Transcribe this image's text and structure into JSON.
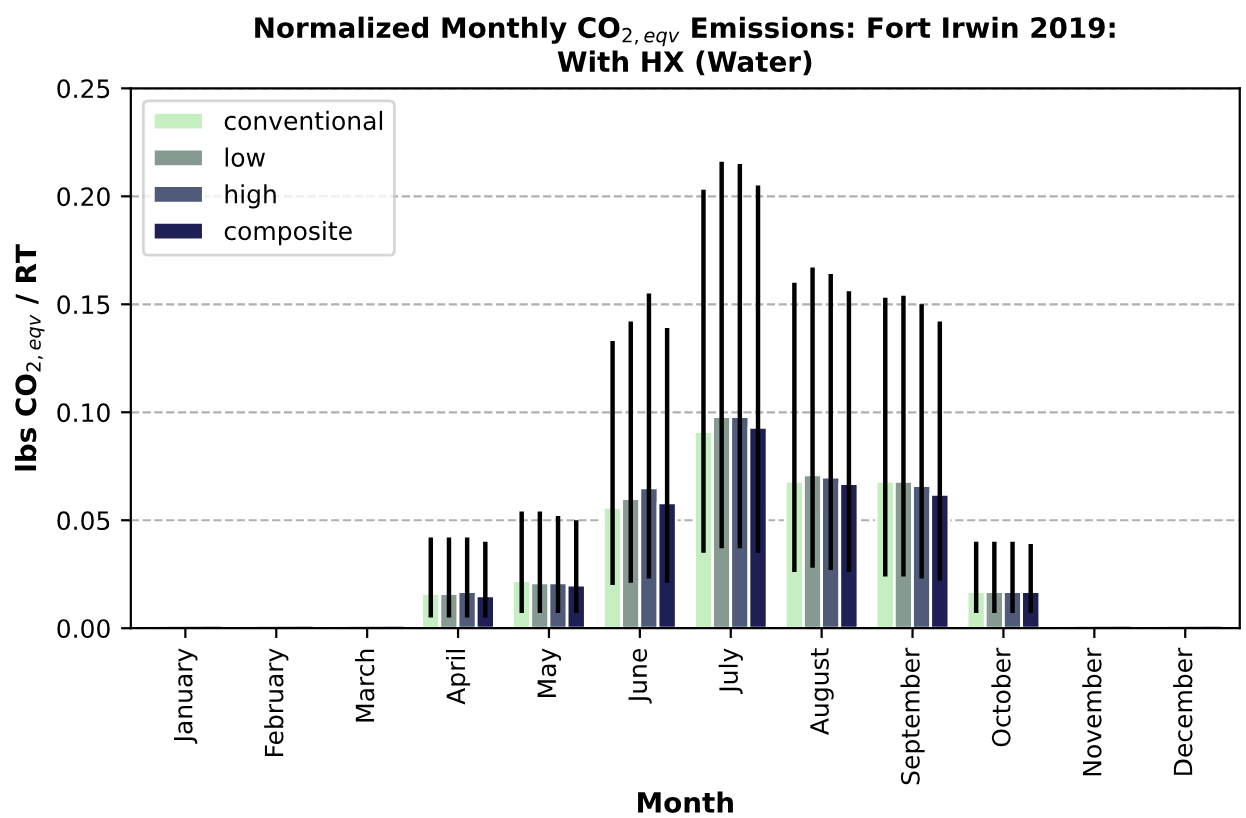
{
  "chart_data": {
    "type": "bar",
    "title": "Normalized Monthly CO$_{2,eqv}$ Emissions: Fort Irwin 2019:\nWith HX (Water)",
    "xlabel": "Month",
    "ylabel": "lbs CO$_{2,eqv}$ / RT",
    "categories": [
      "January",
      "February",
      "March",
      "April",
      "May",
      "June",
      "July",
      "August",
      "September",
      "October",
      "November",
      "December"
    ],
    "series": [
      {
        "name": "conventional",
        "color": "#c5efc0",
        "values": [
          0,
          0,
          0,
          0.016,
          0.022,
          0.056,
          0.091,
          0.068,
          0.068,
          0.017,
          0,
          0
        ],
        "errors": [
          null,
          null,
          null,
          [
            0.005,
            0.042
          ],
          [
            0.007,
            0.054
          ],
          [
            0.02,
            0.133
          ],
          [
            0.035,
            0.203
          ],
          [
            0.026,
            0.16
          ],
          [
            0.024,
            0.153
          ],
          [
            0.007,
            0.04
          ],
          null,
          null
        ]
      },
      {
        "name": "low",
        "color": "#869a91",
        "values": [
          0,
          0,
          0,
          0.016,
          0.021,
          0.06,
          0.098,
          0.071,
          0.068,
          0.017,
          0,
          0
        ],
        "errors": [
          null,
          null,
          null,
          [
            0.005,
            0.042
          ],
          [
            0.007,
            0.054
          ],
          [
            0.021,
            0.142
          ],
          [
            0.037,
            0.216
          ],
          [
            0.028,
            0.167
          ],
          [
            0.024,
            0.154
          ],
          [
            0.007,
            0.04
          ],
          null,
          null
        ]
      },
      {
        "name": "high",
        "color": "#4f5b78",
        "values": [
          0,
          0,
          0,
          0.017,
          0.021,
          0.065,
          0.098,
          0.07,
          0.066,
          0.017,
          0,
          0
        ],
        "errors": [
          null,
          null,
          null,
          [
            0.005,
            0.042
          ],
          [
            0.007,
            0.052
          ],
          [
            0.023,
            0.155
          ],
          [
            0.037,
            0.215
          ],
          [
            0.027,
            0.164
          ],
          [
            0.023,
            0.15
          ],
          [
            0.007,
            0.04
          ],
          null,
          null
        ]
      },
      {
        "name": "composite",
        "color": "#1e1f54",
        "values": [
          0,
          0,
          0,
          0.015,
          0.02,
          0.058,
          0.093,
          0.067,
          0.062,
          0.017,
          0,
          0
        ],
        "errors": [
          null,
          null,
          null,
          [
            0.005,
            0.04
          ],
          [
            0.007,
            0.05
          ],
          [
            0.021,
            0.139
          ],
          [
            0.035,
            0.205
          ],
          [
            0.026,
            0.156
          ],
          [
            0.022,
            0.142
          ],
          [
            0.007,
            0.039
          ],
          null,
          null
        ]
      }
    ],
    "ylim": [
      0,
      0.25
    ],
    "yticks": [
      {
        "value": 0,
        "label": "0.00"
      },
      {
        "value": 0.05,
        "label": "0.05"
      },
      {
        "value": 0.1,
        "label": "0.10"
      },
      {
        "value": 0.15,
        "label": "0.15"
      },
      {
        "value": 0.2,
        "label": "0.20"
      },
      {
        "value": 0.25,
        "label": "0.25"
      }
    ],
    "grid": "y",
    "legend": "top left"
  }
}
